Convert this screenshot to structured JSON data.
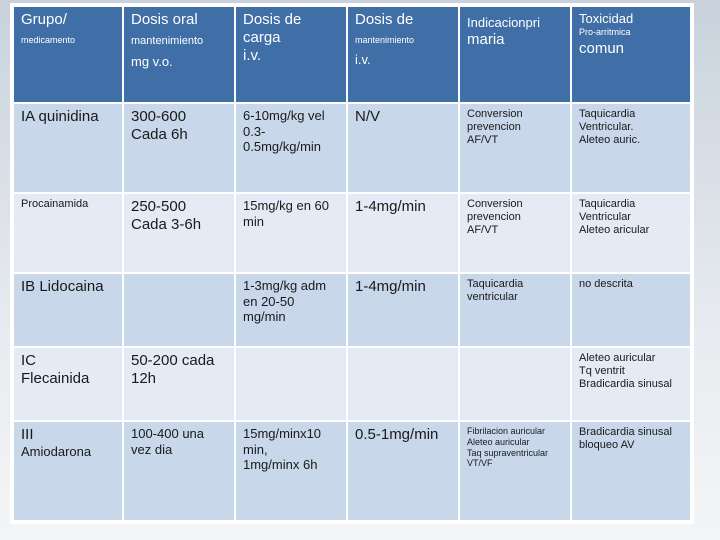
{
  "header": {
    "col1": {
      "line1": "Grupo/",
      "line2": "medicamento"
    },
    "col2": {
      "line1": "Dosis oral",
      "line2": "mantenimiento",
      "line3": "mg v.o."
    },
    "col3": {
      "line1": "Dosis de",
      "line2": "carga",
      "line3": "i.v."
    },
    "col4": {
      "line1": "Dosis de",
      "line2": "mantenimiento",
      "line3": "i.v."
    },
    "col5": {
      "line1": "Indicacionpri",
      "line2": "maria"
    },
    "col6": {
      "line1": "Toxicidad",
      "line2": "Pro-arritmica",
      "line3": "comun"
    }
  },
  "rows": [
    {
      "grupo": [
        "IA quinidina"
      ],
      "oral": [
        "300-600",
        "Cada 6h"
      ],
      "carga": [
        "6-10mg/kg vel",
        "0.3-",
        "0.5mg/kg/min"
      ],
      "mant_iv": [
        "N/V"
      ],
      "indicacion": [
        "Conversion",
        "prevencion",
        "AF/VT"
      ],
      "toxicidad": [
        "Taquicardia",
        "Ventricular.",
        "Aleteo auric."
      ]
    },
    {
      "grupo": [
        "Procainamida"
      ],
      "oral": [
        "250-500",
        "Cada 3-6h"
      ],
      "carga": [
        "15mg/kg en 60",
        "min"
      ],
      "mant_iv": [
        "1-4mg/min"
      ],
      "indicacion": [
        "Conversion",
        "prevencion",
        "AF/VT"
      ],
      "toxicidad": [
        "Taquicardia",
        "Ventricular",
        "Aleteo aricular"
      ]
    },
    {
      "grupo": [
        "IB Lidocaina"
      ],
      "oral": [],
      "carga": [
        "1-3mg/kg adm",
        "en 20-50",
        "mg/min"
      ],
      "mant_iv": [
        "1-4mg/min"
      ],
      "indicacion": [
        "Taquicardia",
        "ventricular"
      ],
      "toxicidad": [
        "no descrita"
      ]
    },
    {
      "grupo": [
        "IC",
        "Flecainida"
      ],
      "oral": [
        "50-200 cada",
        "12h"
      ],
      "carga": [],
      "mant_iv": [],
      "indicacion": [],
      "toxicidad": [
        "Aleteo auricular",
        "Tq ventrit",
        "Bradicardia sinusal"
      ]
    },
    {
      "grupo": [
        "III",
        "Amiodarona"
      ],
      "oral": [
        "100-400 una",
        "vez dia"
      ],
      "carga": [
        "15mg/minx10",
        "min,",
        "1mg/minx 6h"
      ],
      "mant_iv": [
        "0.5-1mg/min"
      ],
      "indicacion": [
        "Fibrilacion auricular",
        "Aleteo auricular",
        "Taq supraventricular",
        "VT/VF"
      ],
      "toxicidad": [
        "Bradicardia sinusal",
        "bloqueo AV"
      ]
    }
  ],
  "colors": {
    "header_bg": "#3f6fa6",
    "row_dark": "#c8d7ea",
    "row_light": "#e4ebf5",
    "border": "#ffffff"
  }
}
